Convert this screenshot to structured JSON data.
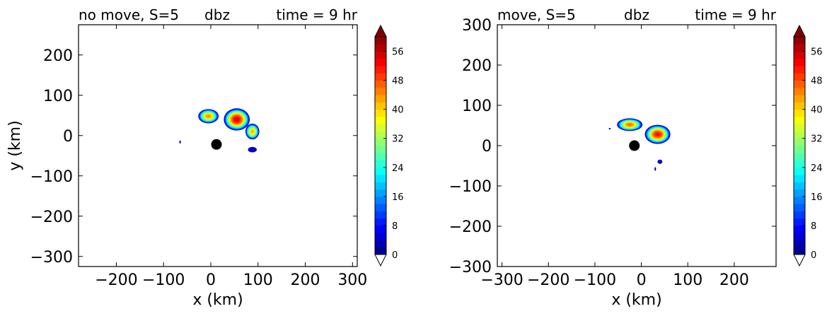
{
  "chart_data": [
    {
      "type": "heatmap",
      "title_left": "no move, S=5",
      "title_center": "dbz",
      "title_right": "time = 9 hr",
      "title_left_color": "#ff0000",
      "title_center_color": "#000000",
      "title_right_color": "#0000ff",
      "xlabel": "x (km)",
      "ylabel": "y (km)",
      "xlim": [
        -280,
        310
      ],
      "ylim": [
        -325,
        275
      ],
      "xticks": [
        -200,
        -100,
        0,
        100,
        200,
        300
      ],
      "xtick_labels": [
        "−200",
        "−100",
        "0",
        "100",
        "200",
        "300"
      ],
      "yticks": [
        -300,
        -200,
        -100,
        0,
        100,
        200
      ],
      "ytick_labels": [
        "−300",
        "−200",
        "−100",
        "0",
        "100",
        "200"
      ],
      "marker": {
        "x": 12,
        "y": -22
      },
      "cells": [
        {
          "x": -5,
          "y": 48,
          "rx": 22,
          "ry": 18,
          "peak": 44
        },
        {
          "x": 55,
          "y": 40,
          "rx": 28,
          "ry": 28,
          "peak": 54
        },
        {
          "x": 88,
          "y": 10,
          "rx": 15,
          "ry": 20,
          "peak": 42
        },
        {
          "x": 88,
          "y": -35,
          "rx": 11,
          "ry": 8,
          "peak": 6
        },
        {
          "x": -65,
          "y": -16,
          "rx": 2,
          "ry": 5,
          "peak": 4
        }
      ],
      "colorbar": {
        "min": 0,
        "max": 60,
        "ticks": [
          0,
          8,
          16,
          24,
          32,
          40,
          48,
          56
        ],
        "extend": "both",
        "colormap": "jet"
      }
    },
    {
      "type": "heatmap",
      "title_left": "move, S=5",
      "title_center": "dbz",
      "title_right": "time = 9 hr",
      "title_left_color": "#ff0000",
      "title_center_color": "#000000",
      "title_right_color": "#0000ff",
      "xlabel": "x (km)",
      "ylabel": "",
      "xlim": [
        -310,
        290
      ],
      "ylim": [
        -300,
        300
      ],
      "xticks": [
        -300,
        -200,
        -100,
        0,
        100,
        200
      ],
      "xtick_labels": [
        "−300",
        "−200",
        "−100",
        "0",
        "100",
        "200"
      ],
      "yticks": [
        -300,
        -200,
        -100,
        0,
        100,
        200,
        300
      ],
      "ytick_labels": [
        "−300",
        "−200",
        "−100",
        "0",
        "100",
        "200",
        "300"
      ],
      "marker": {
        "x": -15,
        "y": 0
      },
      "cells": [
        {
          "x": -25,
          "y": 52,
          "rx": 28,
          "ry": 16,
          "peak": 46
        },
        {
          "x": 35,
          "y": 28,
          "rx": 28,
          "ry": 24,
          "peak": 52
        },
        {
          "x": 40,
          "y": -40,
          "rx": 6,
          "ry": 6,
          "peak": 8
        },
        {
          "x": 30,
          "y": -58,
          "rx": 2,
          "ry": 6,
          "peak": 4
        },
        {
          "x": -68,
          "y": 42,
          "rx": 3,
          "ry": 2,
          "peak": 3
        }
      ],
      "colorbar": {
        "min": 0,
        "max": 60,
        "ticks": [
          0,
          8,
          16,
          24,
          32,
          40,
          48,
          56
        ],
        "extend": "both",
        "colormap": "jet"
      }
    }
  ]
}
